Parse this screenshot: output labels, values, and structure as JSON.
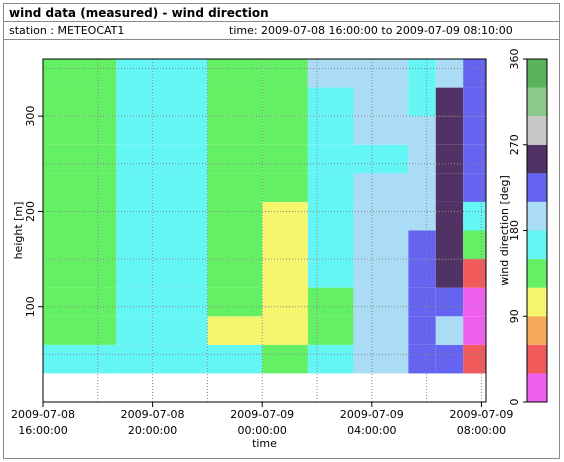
{
  "header": {
    "title": "wind data (measured) - wind direction",
    "station": "station : METEOCAT1",
    "time_range": "time: 2009-07-08 16:00:00 to 2009-07-09 08:10:00"
  },
  "chart_data": {
    "type": "heatmap",
    "title": "wind data (measured) - wind direction",
    "xlabel": "time",
    "ylabel": "height [m]",
    "colorbar_label": "wind direction [deg]",
    "x_start": "2009-07-08 16:00:00",
    "x_end": "2009-07-09 08:10:00",
    "x_ticks": [
      {
        "line1": "2009-07-08",
        "line2": "16:00:00"
      },
      {
        "line1": "2009-07-08",
        "line2": "20:00:00"
      },
      {
        "line1": "2009-07-09",
        "line2": "00:00:00"
      },
      {
        "line1": "2009-07-09",
        "line2": "04:00:00"
      },
      {
        "line1": "2009-07-09",
        "line2": "08:00:00"
      }
    ],
    "ylim": [
      0,
      360
    ],
    "y_ticks": [
      "100",
      "200",
      "300"
    ],
    "y_tick_values": [
      100,
      200,
      300
    ],
    "data_height_range": [
      30,
      360
    ],
    "colorbar_range": [
      0,
      360
    ],
    "colorbar_ticks": [
      "0",
      "90",
      "180",
      "270",
      "360"
    ],
    "colorbar_tick_values": [
      0,
      90,
      180,
      270,
      360
    ],
    "colorbar_colors": [
      "#f060f0",
      "#f05a5a",
      "#f5aa5a",
      "#f5f56e",
      "#64f064",
      "#64f5f5",
      "#aadcf5",
      "#6464f0",
      "#503264",
      "#c8c8c8",
      "#8cc88c",
      "#5ab45a"
    ],
    "grid": true,
    "columns": [
      {
        "start": "2009-07-08 16:00:00",
        "end": "2009-07-08 18:40:00",
        "dir_deg": [
          155,
          130,
          122,
          128,
          135,
          132,
          128,
          125,
          130,
          128,
          130
        ]
      },
      {
        "start": "2009-07-08 18:40:00",
        "end": "2009-07-08 20:00:00",
        "dir_deg": [
          160,
          150,
          155,
          158,
          160,
          158,
          162,
          160,
          165,
          168,
          155
        ]
      },
      {
        "start": "2009-07-08 20:00:00",
        "end": "2009-07-08 22:00:00",
        "dir_deg": [
          160,
          150,
          158,
          162,
          165,
          165,
          168,
          165,
          165,
          165,
          160
        ]
      },
      {
        "start": "2009-07-08 22:00:00",
        "end": "2009-07-09 00:00:00",
        "dir_deg": [
          150,
          110,
          120,
          125,
          130,
          140,
          135,
          130,
          128,
          130,
          135
        ]
      },
      {
        "start": "2009-07-09 00:00:00",
        "end": "2009-07-09 01:40:00",
        "dir_deg": [
          140,
          110,
          108,
          108,
          108,
          110,
          125,
          130,
          130,
          132,
          130
        ]
      },
      {
        "start": "2009-07-09 01:40:00",
        "end": "2009-07-09 03:20:00",
        "dir_deg": [
          155,
          148,
          145,
          150,
          155,
          160,
          165,
          170,
          175,
          178,
          180
        ]
      },
      {
        "start": "2009-07-09 03:20:00",
        "end": "2009-07-09 05:20:00",
        "dir_deg": [
          190,
          185,
          185,
          190,
          190,
          188,
          185,
          175,
          180,
          185,
          190
        ]
      },
      {
        "start": "2009-07-09 05:20:00",
        "end": "2009-07-09 06:20:00",
        "dir_deg": [
          220,
          215,
          220,
          225,
          210,
          200,
          190,
          185,
          180,
          170,
          150
        ]
      },
      {
        "start": "2009-07-09 06:20:00",
        "end": "2009-07-09 07:20:00",
        "dir_deg": [
          210,
          200,
          230,
          240,
          245,
          250,
          258,
          255,
          250,
          245,
          200
        ]
      },
      {
        "start": "2009-07-09 07:20:00",
        "end": "2009-07-09 08:10:00",
        "dir_deg": [
          40,
          25,
          15,
          40,
          135,
          150,
          220,
          230,
          215,
          230,
          235
        ]
      }
    ]
  }
}
